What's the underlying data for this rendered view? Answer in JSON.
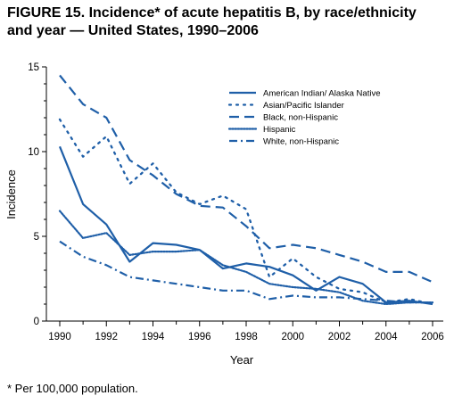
{
  "figure": {
    "title_line1": "FIGURE 15. Incidence* of acute hepatitis B, by race/ethnicity",
    "title_line2": "and year — United States, 1990–2006",
    "footnote": "* Per 100,000 population."
  },
  "chart_data": {
    "type": "line",
    "xlabel": "Year",
    "ylabel": "Incidence",
    "xlim": [
      1990,
      2006
    ],
    "ylim": [
      0,
      15
    ],
    "x_ticks": [
      1990,
      1992,
      1994,
      1996,
      1998,
      2000,
      2002,
      2004,
      2006
    ],
    "y_ticks": [
      0,
      5,
      10,
      15
    ],
    "grid": false,
    "legend_position": "top-right",
    "color": "#1f5fa8",
    "x": [
      1990,
      1991,
      1992,
      1993,
      1994,
      1995,
      1996,
      1997,
      1998,
      1999,
      2000,
      2001,
      2002,
      2003,
      2004,
      2005,
      2006
    ],
    "series": [
      {
        "name": "American Indian/ Alaska Native",
        "style": "solid",
        "values": [
          10.3,
          6.9,
          5.7,
          3.5,
          4.6,
          4.5,
          4.2,
          3.1,
          3.4,
          3.2,
          2.7,
          1.8,
          2.6,
          2.2,
          1.1,
          1.2,
          1.0
        ]
      },
      {
        "name": "Asian/Pacific Islander",
        "style": "sparse-dot",
        "values": [
          11.9,
          9.7,
          10.9,
          8.1,
          9.3,
          7.6,
          6.9,
          7.4,
          6.6,
          2.6,
          3.7,
          2.6,
          1.9,
          1.7,
          1.1,
          1.3,
          1.0
        ]
      },
      {
        "name": "Black, non-Hispanic",
        "style": "long-dash",
        "values": [
          14.5,
          12.8,
          12.0,
          9.5,
          8.6,
          7.5,
          6.8,
          6.7,
          5.6,
          4.3,
          4.5,
          4.3,
          3.9,
          3.5,
          2.9,
          2.9,
          2.3
        ]
      },
      {
        "name": "Hispanic",
        "style": "dense-dot",
        "values": [
          6.5,
          4.9,
          5.2,
          3.9,
          4.1,
          4.1,
          4.2,
          3.3,
          2.9,
          2.2,
          2.0,
          1.9,
          1.7,
          1.2,
          1.0,
          1.1,
          1.1
        ]
      },
      {
        "name": "White, non-Hispanic",
        "style": "dash-dot",
        "values": [
          4.7,
          3.8,
          3.3,
          2.6,
          2.4,
          2.2,
          2.0,
          1.8,
          1.8,
          1.3,
          1.5,
          1.4,
          1.4,
          1.3,
          1.2,
          1.1,
          1.1
        ]
      }
    ]
  }
}
